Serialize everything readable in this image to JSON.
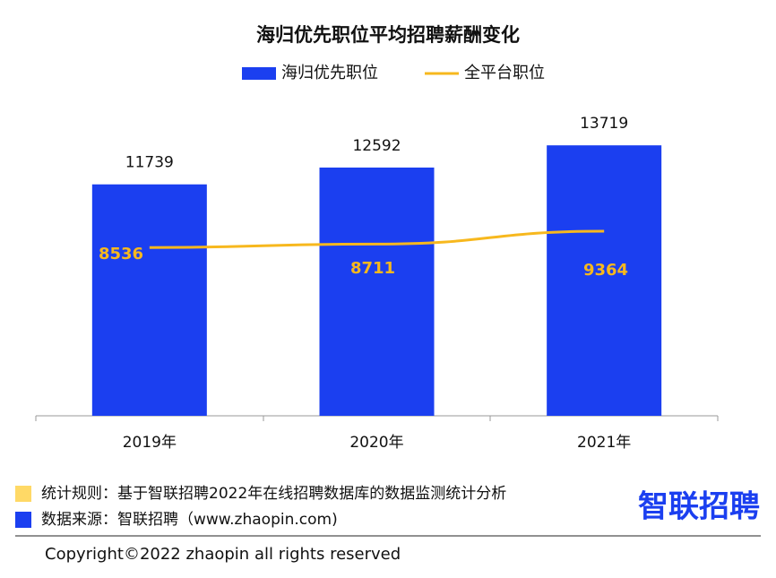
{
  "chart_data": {
    "type": "bar",
    "title": "海归优先职位平均招聘薪酬变化",
    "categories": [
      "2019年",
      "2020年",
      "2021年"
    ],
    "series": [
      {
        "name": "海归优先职位",
        "type": "bar",
        "color": "#1b3ff0",
        "values": [
          11739,
          12592,
          13719
        ]
      },
      {
        "name": "全平台职位",
        "type": "line",
        "color": "#f7b81e",
        "values": [
          8536,
          8711,
          9364
        ]
      }
    ]
  },
  "footer": {
    "notes": [
      {
        "text": "统计规则：基于智联招聘2022年在线招聘数据库的数据监测统计分析",
        "color": "#ffd966"
      },
      {
        "text": "数据来源：智联招聘（www.zhaopin.com)",
        "color": "#1b3ff0"
      }
    ],
    "logo": "智联招聘",
    "copyright": "Copyright©2022 zhaopin all rights reserved"
  }
}
